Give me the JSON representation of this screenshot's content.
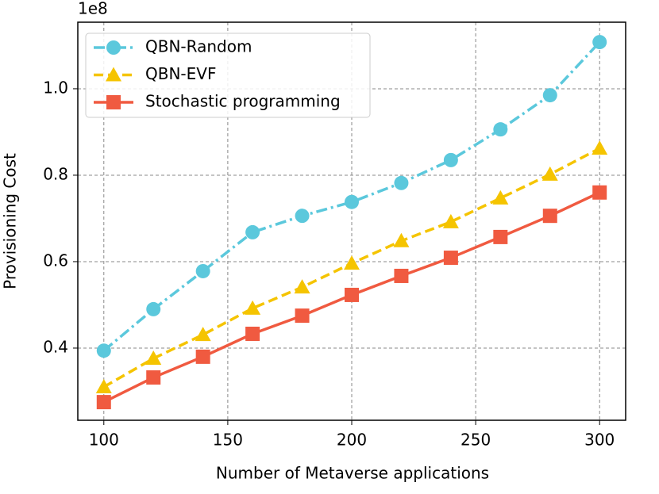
{
  "chart_data": {
    "type": "line",
    "x_label": "Number of Metaverse applications",
    "y_label": "Provisioning Cost",
    "y_offset_label": "1e8",
    "x": [
      100,
      120,
      140,
      160,
      180,
      200,
      220,
      240,
      260,
      280,
      300
    ],
    "series": [
      {
        "name": "QBN-Random",
        "color": "#5bc8dc",
        "dash": "dashdot",
        "marker": "circle",
        "values": [
          0.394,
          0.49,
          0.578,
          0.668,
          0.706,
          0.738,
          0.782,
          0.835,
          0.906,
          0.985,
          1.108
        ]
      },
      {
        "name": "QBN-EVF",
        "color": "#f5c400",
        "dash": "dashed",
        "marker": "triangle",
        "values": [
          0.31,
          0.376,
          0.431,
          0.492,
          0.541,
          0.596,
          0.648,
          0.692,
          0.747,
          0.802,
          0.862
        ]
      },
      {
        "name": "Stochastic programming",
        "color": "#f05a40",
        "dash": "solid",
        "marker": "square",
        "values": [
          0.275,
          0.332,
          0.38,
          0.433,
          0.475,
          0.523,
          0.567,
          0.609,
          0.657,
          0.706,
          0.76
        ]
      }
    ],
    "xlim": [
      89.5,
      310.5
    ],
    "ylim": [
      0.233,
      1.154
    ],
    "xticks": [
      100,
      150,
      200,
      250,
      300
    ],
    "yticks": [
      0.4,
      0.6,
      0.8,
      {
        "value": 1,
        "label": "1.0"
      }
    ],
    "grid": true,
    "legend": "upper left"
  }
}
